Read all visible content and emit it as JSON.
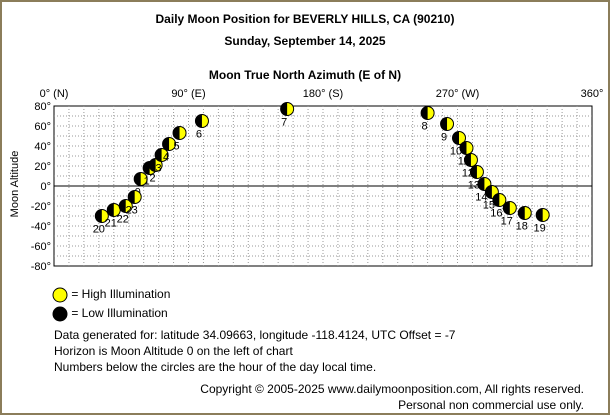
{
  "header": {
    "title": "Daily Moon Position for BEVERLY HILLS, CA (90210)",
    "date": "Sunday, September 14, 2025"
  },
  "chart_data": {
    "type": "scatter",
    "title": "Moon True North Azimuth (E of N)",
    "xlabel": "",
    "ylabel": "Moon Altitude",
    "xlim": [
      0,
      360
    ],
    "ylim": [
      -80,
      80
    ],
    "x_ticks": [
      {
        "value": 0,
        "label": "0° (N)"
      },
      {
        "value": 90,
        "label": "90° (E)"
      },
      {
        "value": 180,
        "label": "180° (S)"
      },
      {
        "value": 270,
        "label": "270° (W)"
      },
      {
        "value": 360,
        "label": "360°"
      }
    ],
    "y_ticks": [
      {
        "value": 80,
        "label": "80°"
      },
      {
        "value": 60,
        "label": "60°"
      },
      {
        "value": 40,
        "label": "40°"
      },
      {
        "value": 20,
        "label": "20°"
      },
      {
        "value": 0,
        "label": "0°"
      },
      {
        "value": -20,
        "label": "-20°"
      },
      {
        "value": -40,
        "label": "-40°"
      },
      {
        "value": -60,
        "label": "-60°"
      },
      {
        "value": -80,
        "label": "-80°"
      }
    ],
    "grid": true,
    "series": [
      {
        "points": [
          {
            "hour": "0",
            "azimuth": 58,
            "altitude": 7
          },
          {
            "hour": "1",
            "azimuth": 64,
            "altitude": 18
          },
          {
            "hour": "2",
            "azimuth": 68,
            "altitude": 21
          },
          {
            "hour": "3",
            "azimuth": 72,
            "altitude": 31
          },
          {
            "hour": "4",
            "azimuth": 77,
            "altitude": 42
          },
          {
            "hour": "5",
            "azimuth": 84,
            "altitude": 53
          },
          {
            "hour": "6",
            "azimuth": 99,
            "altitude": 65
          },
          {
            "hour": "7",
            "azimuth": 156,
            "altitude": 77
          },
          {
            "hour": "8",
            "azimuth": 250,
            "altitude": 73
          },
          {
            "hour": "9",
            "azimuth": 263,
            "altitude": 62
          },
          {
            "hour": "10",
            "azimuth": 271,
            "altitude": 48
          },
          {
            "hour": "11",
            "azimuth": 276,
            "altitude": 38
          },
          {
            "hour": "12",
            "azimuth": 279,
            "altitude": 26
          },
          {
            "hour": "13",
            "azimuth": 283,
            "altitude": 14
          },
          {
            "hour": "14",
            "azimuth": 288,
            "altitude": 2
          },
          {
            "hour": "15",
            "azimuth": 293,
            "altitude": -6
          },
          {
            "hour": "16",
            "azimuth": 298,
            "altitude": -14
          },
          {
            "hour": "17",
            "azimuth": 305,
            "altitude": -22
          },
          {
            "hour": "18",
            "azimuth": 315,
            "altitude": -27
          },
          {
            "hour": "19",
            "azimuth": 327,
            "altitude": -29
          },
          {
            "hour": "20",
            "azimuth": 32,
            "altitude": -30
          },
          {
            "hour": "21",
            "azimuth": 40,
            "altitude": -24
          },
          {
            "hour": "22",
            "azimuth": 48,
            "altitude": -20
          },
          {
            "hour": "23",
            "azimuth": 54,
            "altitude": -11
          }
        ]
      }
    ]
  },
  "legend": {
    "high_label": "= High Illumination",
    "low_label": "= Low Illumination"
  },
  "info": {
    "line1": "Data generated for: latitude 34.09663, longitude -118.4124, UTC Offset = -7",
    "line2": "Horizon is Moon Altitude 0 on the left of chart",
    "line3": "Numbers below the circles are the hour of the day local time."
  },
  "footer": {
    "copyright": "Copyright © 2005-2025 www.dailymoonposition.com, All rights reserved.",
    "notice": "Personal non commercial use only."
  },
  "colors": {
    "high": "#ffff00",
    "low": "#000000",
    "frame": "#8b7d5a",
    "grid": "#999999"
  }
}
